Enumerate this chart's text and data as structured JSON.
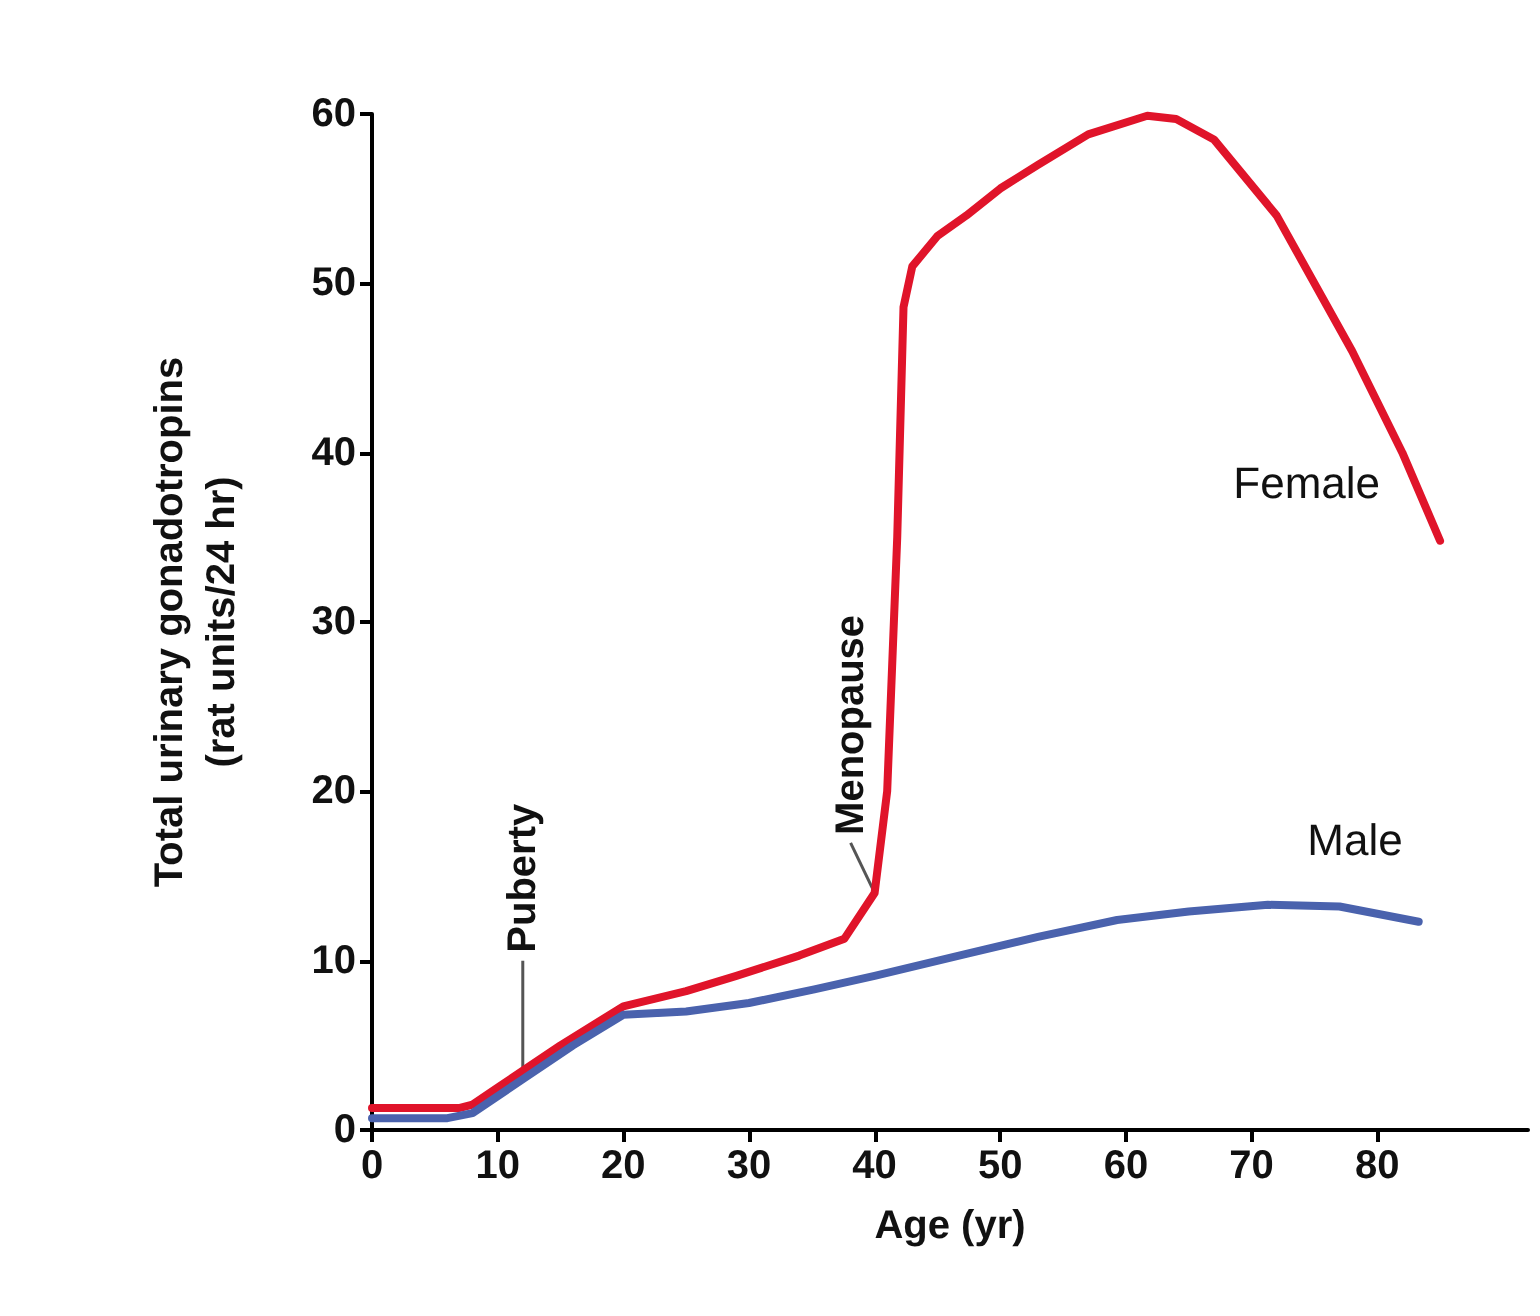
{
  "chart_data": {
    "type": "line",
    "xlabel": "Age (yr)",
    "ylabel": "Total urinary gonadotropins\n(rat units/24 hr)",
    "xlim": [
      0,
      92
    ],
    "xticks": [
      0,
      10,
      20,
      30,
      40,
      50,
      60,
      70,
      80
    ],
    "ylim": [
      0,
      60
    ],
    "yticks": [
      0,
      10,
      20,
      30,
      40,
      50,
      60
    ],
    "grid": false,
    "legend": false,
    "marker": "none",
    "line_style": "solid",
    "series": [
      {
        "name": "Female",
        "color": "#e0142a",
        "x": [
          0,
          7,
          8,
          10,
          15,
          20,
          25,
          29,
          34,
          37.6,
          40,
          41,
          41.8,
          42.3,
          43,
          45,
          47.3,
          50,
          53,
          57,
          61.7,
          64,
          67,
          72,
          78,
          82,
          85
        ],
        "values": [
          1.3,
          1.3,
          1.5,
          2.5,
          5,
          7.3,
          8.2,
          9.1,
          10.3,
          11.3,
          14,
          20,
          35,
          48.6,
          51,
          52.8,
          54,
          55.6,
          57,
          58.8,
          59.9,
          59.7,
          58.5,
          54,
          46,
          40,
          34.8
        ]
      },
      {
        "name": "Male",
        "color": "#4a62ad",
        "x": [
          0,
          6,
          8,
          12,
          16,
          20,
          25,
          30,
          35.2,
          40,
          47.3,
          53,
          59.3,
          65,
          71.3,
          77,
          83.3
        ],
        "values": [
          0.7,
          0.7,
          1,
          3,
          5,
          6.8,
          7,
          7.5,
          8.3,
          9.1,
          10.4,
          11.4,
          12.4,
          12.9,
          13.3,
          13.2,
          12.3
        ]
      }
    ],
    "annotations": [
      {
        "text": "Puberty",
        "x": 12,
        "y": 3.5
      },
      {
        "text": "Menopause",
        "x": 40,
        "y": 14
      }
    ]
  }
}
